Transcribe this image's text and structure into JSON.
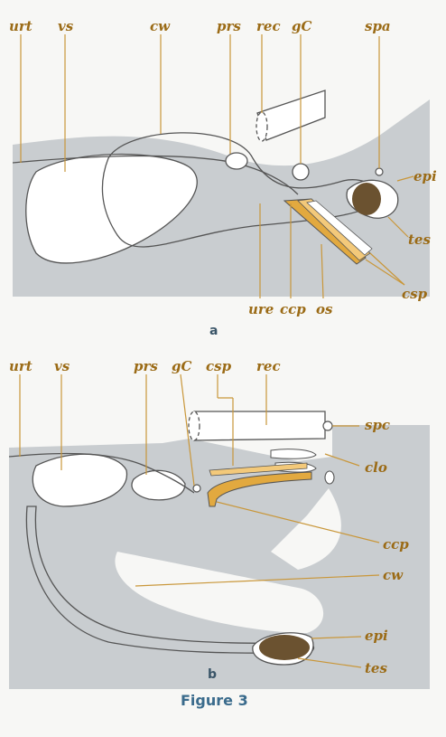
{
  "caption": "Figure 3",
  "panel_a": {
    "letter": "a",
    "labels": {
      "urt": "urt",
      "vs": "vs",
      "cw": "cw",
      "prs": "prs",
      "rec": "rec",
      "gC": "gC",
      "spa": "spa",
      "epi": "epi",
      "tes": "tes",
      "csp": "csp",
      "ure": "ure",
      "ccp": "ccp",
      "os": "os"
    }
  },
  "panel_b": {
    "letter": "b",
    "labels": {
      "urt": "urt",
      "vs": "vs",
      "prs": "prs",
      "gC": "gC",
      "csp": "csp",
      "rec": "rec",
      "spc": "spc",
      "clo": "clo",
      "ccp": "ccp",
      "cw": "cw",
      "epi": "epi",
      "tes": "tes"
    }
  },
  "colors": {
    "tissue": "#c9cdd0",
    "leader": "#c9973a",
    "organ": "#e2a93f",
    "testis": "#6b5230",
    "outline": "#555555"
  }
}
